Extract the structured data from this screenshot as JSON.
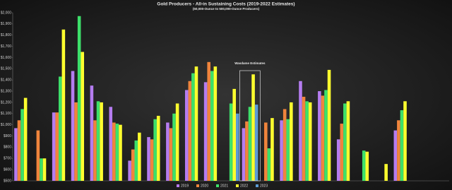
{
  "chart_data": {
    "type": "bar",
    "title": "Gold Producers - All-in Sustaining Costs (2019-2022 Estimates)",
    "subtitle": "(50,000-Ounce to 500,000-Ounce Producers)",
    "annotation": {
      "text": "Wasdame Estimates",
      "category_index": 12
    },
    "categories": [
      null,
      null,
      null,
      null,
      null,
      null,
      null,
      null,
      null,
      null,
      null,
      null,
      null,
      null,
      null,
      null,
      null,
      null,
      null,
      null,
      null,
      null,
      null
    ],
    "series": [
      {
        "name": "2019",
        "color": "#b57cf0",
        "values": [
          970,
          null,
          1110,
          1480,
          1350,
          1160,
          680,
          890,
          1020,
          1310,
          1380,
          null,
          970,
          null,
          1040,
          1390,
          1300,
          870,
          null,
          null,
          950,
          null,
          null
        ]
      },
      {
        "name": "2020",
        "color": "#f0843c",
        "values": [
          1040,
          950,
          1110,
          1200,
          1040,
          1020,
          780,
          870,
          970,
          1390,
          1560,
          null,
          1030,
          1020,
          1140,
          1250,
          1260,
          1010,
          null,
          null,
          1040,
          null,
          null
        ]
      },
      {
        "name": "2021",
        "color": "#3de06a",
        "values": [
          1140,
          700,
          1430,
          1970,
          1210,
          1010,
          860,
          1050,
          1100,
          1460,
          1480,
          1190,
          1160,
          790,
          1050,
          1210,
          1310,
          1190,
          770,
          null,
          1130,
          null,
          null
        ]
      },
      {
        "name": "2022",
        "color": "#ffff2e",
        "values": [
          1240,
          700,
          1850,
          1650,
          1200,
          1000,
          930,
          1080,
          1190,
          1520,
          1520,
          1320,
          1450,
          1060,
          1200,
          1200,
          1490,
          1210,
          760,
          650,
          1210,
          null,
          null
        ]
      },
      {
        "name": "2023",
        "color": "#5b9bd5",
        "values": [
          null,
          null,
          null,
          null,
          null,
          null,
          null,
          null,
          null,
          null,
          null,
          1100,
          1180,
          null,
          null,
          null,
          null,
          null,
          null,
          null,
          null,
          null,
          null
        ]
      }
    ],
    "ylim": [
      500,
      2000
    ],
    "yticks": [
      {
        "value": 500,
        "label": "$500"
      },
      {
        "value": 600,
        "label": "$600"
      },
      {
        "value": 700,
        "label": "$700"
      },
      {
        "value": 800,
        "label": "$800"
      },
      {
        "value": 900,
        "label": "$900"
      },
      {
        "value": 1000,
        "label": "$1,000"
      },
      {
        "value": 1100,
        "label": "$1,100"
      },
      {
        "value": 1200,
        "label": "$1,200"
      },
      {
        "value": 1300,
        "label": "$1,300"
      },
      {
        "value": 1400,
        "label": "$1,400"
      },
      {
        "value": 1500,
        "label": "$1,500"
      },
      {
        "value": 1600,
        "label": "$1,600"
      },
      {
        "value": 1700,
        "label": "$1,700"
      },
      {
        "value": 1800,
        "label": "$1,800"
      },
      {
        "value": 1900,
        "label": "$1,900"
      },
      {
        "value": 2000,
        "label": "$2,000"
      }
    ],
    "grid": false
  }
}
